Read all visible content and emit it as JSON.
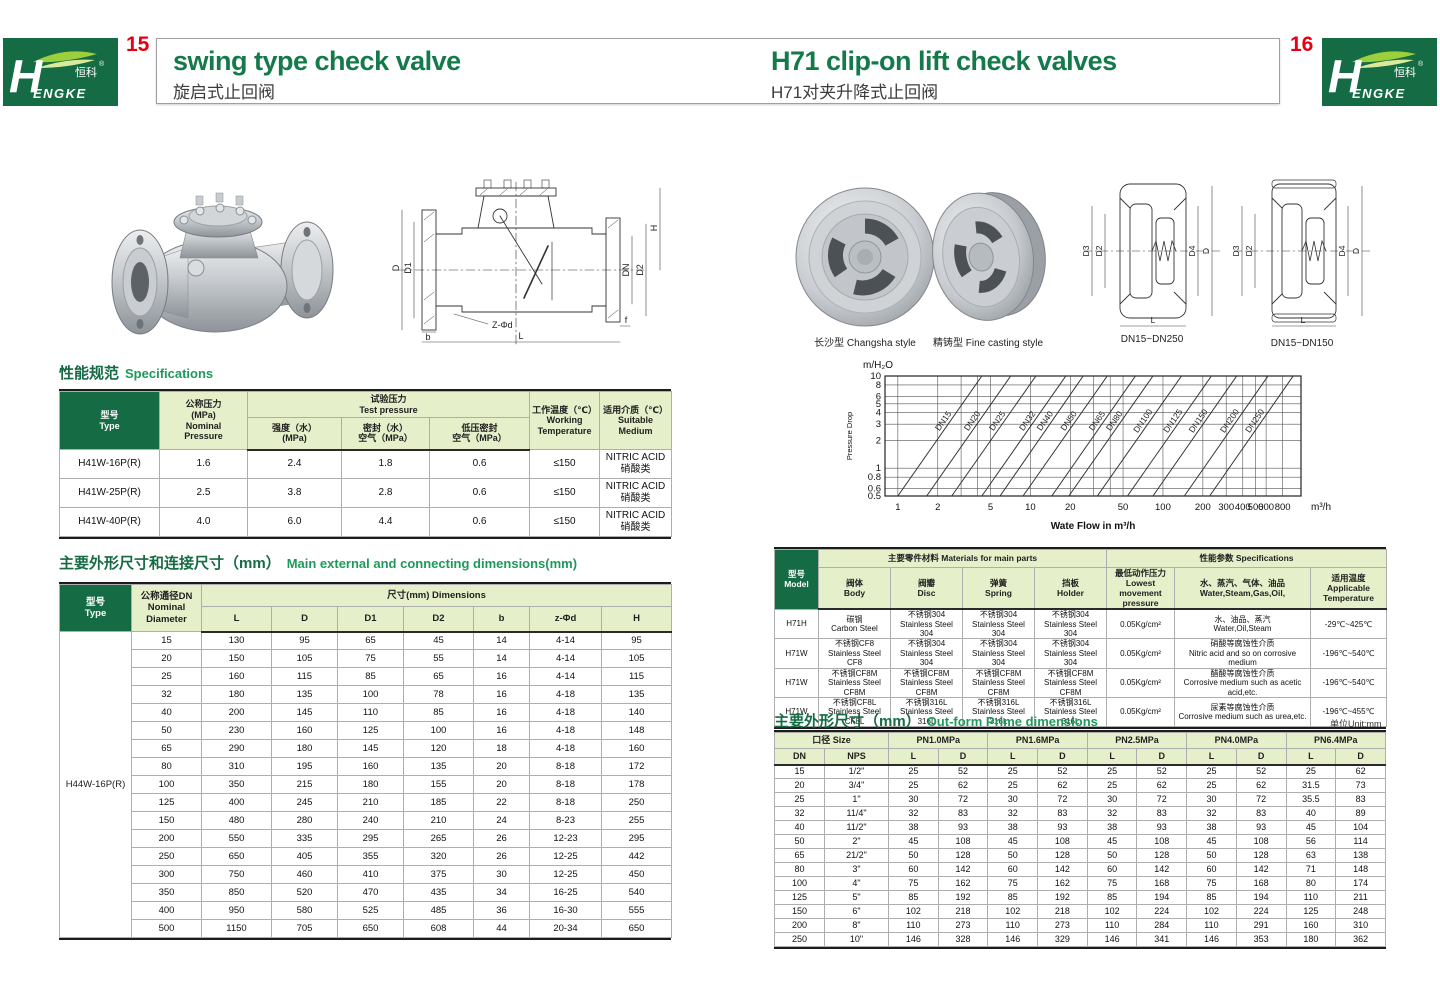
{
  "page": {
    "left_number": "15",
    "right_number": "16"
  },
  "logo": {
    "h": "H",
    "rest": "ENGKE",
    "zh": "恒科",
    "reg": "®"
  },
  "left": {
    "title_en": "swing type check valve",
    "title_zh": "旋启式止回阀",
    "spec_section": {
      "zh": "性能规范",
      "en": "Specifications"
    },
    "spec": {
      "h_type": "型号\nType",
      "h_nominal": "公称压力\n(MPa)\nNominal\nPressure",
      "h_test": "试验压力\nTest pressure",
      "h_strength": "强度（水）\n(MPa)",
      "h_seal": "密封（水）\n空气（MPa）",
      "h_lowseal": "低压密封\n空气（MPa）",
      "h_working": "工作温度（℃）\nWorking\nTemperature",
      "h_medium": "适用介质（℃）\nSuitable\nMedium",
      "rows": [
        [
          "H41W-16P(R)",
          "1.6",
          "2.4",
          "1.8",
          "0.6",
          "≤150",
          "NITRIC ACID\n硝酸类"
        ],
        [
          "H41W-25P(R)",
          "2.5",
          "3.8",
          "2.8",
          "0.6",
          "≤150",
          "NITRIC ACID\n硝酸类"
        ],
        [
          "H41W-40P(R)",
          "4.0",
          "6.0",
          "4.4",
          "0.6",
          "≤150",
          "NITRIC ACID\n硝酸类"
        ]
      ]
    },
    "dims_section": {
      "zh": "主要外形尺寸和连接尺寸（mm）",
      "en": "Main external and connecting dimensions(mm)"
    },
    "dims": {
      "h_type": "型号\nType",
      "h_dn": "公称通径DN\nNominal\nDiameter",
      "h_dims": "尺寸(mm) Dimensions",
      "cols": [
        "L",
        "D",
        "D1",
        "D2",
        "b",
        "z-Φd",
        "H"
      ],
      "type_label": "H44W-16P(R)",
      "rows": [
        [
          "15",
          "130",
          "95",
          "65",
          "45",
          "14",
          "4-14",
          "95"
        ],
        [
          "20",
          "150",
          "105",
          "75",
          "55",
          "14",
          "4-14",
          "105"
        ],
        [
          "25",
          "160",
          "115",
          "85",
          "65",
          "16",
          "4-14",
          "115"
        ],
        [
          "32",
          "180",
          "135",
          "100",
          "78",
          "16",
          "4-18",
          "135"
        ],
        [
          "40",
          "200",
          "145",
          "110",
          "85",
          "16",
          "4-18",
          "140"
        ],
        [
          "50",
          "230",
          "160",
          "125",
          "100",
          "16",
          "4-18",
          "148"
        ],
        [
          "65",
          "290",
          "180",
          "145",
          "120",
          "18",
          "4-18",
          "160"
        ],
        [
          "80",
          "310",
          "195",
          "160",
          "135",
          "20",
          "8-18",
          "172"
        ],
        [
          "100",
          "350",
          "215",
          "180",
          "155",
          "20",
          "8-18",
          "178"
        ],
        [
          "125",
          "400",
          "245",
          "210",
          "185",
          "22",
          "8-18",
          "250"
        ],
        [
          "150",
          "480",
          "280",
          "240",
          "210",
          "24",
          "8-23",
          "255"
        ],
        [
          "200",
          "550",
          "335",
          "295",
          "265",
          "26",
          "12-23",
          "295"
        ],
        [
          "250",
          "650",
          "405",
          "355",
          "320",
          "26",
          "12-25",
          "442"
        ],
        [
          "300",
          "750",
          "460",
          "410",
          "375",
          "30",
          "12-25",
          "450"
        ],
        [
          "350",
          "850",
          "520",
          "470",
          "435",
          "34",
          "16-25",
          "540"
        ],
        [
          "400",
          "950",
          "580",
          "525",
          "485",
          "36",
          "16-30",
          "555"
        ],
        [
          "500",
          "1150",
          "705",
          "650",
          "608",
          "44",
          "20-34",
          "650"
        ]
      ]
    },
    "drawing_labels": [
      "D",
      "D1",
      "DN",
      "D2",
      "H",
      "L",
      "b",
      "f",
      "Z-Φd"
    ]
  },
  "right": {
    "title_en": "H71 clip-on lift check valves",
    "title_zh": "H71对夹升降式止回阀",
    "captions": [
      "长沙型 Changsha style",
      "精铸型 Fine casting style",
      "DN15~DN250",
      "DN15~DN150"
    ],
    "drawing_labels": [
      "D3",
      "D2",
      "D4",
      "D",
      "L"
    ],
    "materials": {
      "h_model": "型号\nModel",
      "h_main": "主要零件材料 Materials for main parts",
      "h_body": "阀体\nBody",
      "h_disc": "阀瓣\nDisc",
      "h_spring": "弹簧\nSpring",
      "h_holder": "挡板\nHolder",
      "h_spec": "性能参数 Specifications",
      "h_pressure": "最低动作压力\nLowest movement\npressure",
      "h_media": "水、蒸汽、气体、油品\nWater,Steam,Gas,Oil,",
      "h_temp": "适用温度\nApplicable\nTemperature",
      "rows": [
        [
          "H71H",
          "碳钢\nCarbon Steel",
          "不锈钢304\nStainless Steel 304",
          "不锈钢304\nStainless Steel 304",
          "不锈钢304\nStainless Steel 304",
          "0.05Kg/cm²",
          "水、油品、蒸汽\nWater,Oil,Steam",
          "-29℃~425℃"
        ],
        [
          "H71W",
          "不锈钢CF8\nStainless Steel CF8",
          "不锈钢304\nStainless Steel 304",
          "不锈钢304\nStainless Steel 304",
          "不锈钢304\nStainless Steel 304",
          "0.05Kg/cm²",
          "硝酸等腐蚀性介质\nNitric acid and so on corrosive medium",
          "-196℃~540℃"
        ],
        [
          "H71W",
          "不锈钢CF8M\nStainless Steel CF8M",
          "不锈钢CF8M\nStainless Steel CF8M",
          "不锈钢CF8M\nStainless Steel CF8M",
          "不锈钢CF8M\nStainless Steel CF8M",
          "0.05Kg/cm²",
          "醋酸等腐蚀性介质\nCorrosive medium such as acetic acid,etc.",
          "-196℃~540℃"
        ],
        [
          "H71W",
          "不锈钢CF8L\nStainless Steel CF8L",
          "不锈钢316L\nStainless Steel 316L",
          "不锈钢316L\nStainless Steel 316L",
          "不锈钢316L\nStainless Steel 316L",
          "0.05Kg/cm²",
          "尿素等腐蚀性介质\nCorrosive medium such as urea,etc.",
          "-196℃~455℃"
        ]
      ]
    },
    "dims_section": {
      "zh": "主要外形尺寸（mm）",
      "en": "Out-form Prime dimensions",
      "unit": "单位Unit:mm"
    },
    "dims": {
      "h_size": "口径 Size",
      "h_dn": "DN",
      "h_nps": "NPS",
      "h_l": "L",
      "h_d": "D",
      "pn": [
        "PN1.0MPa",
        "PN1.6MPa",
        "PN2.5MPa",
        "PN4.0MPa",
        "PN6.4MPa"
      ],
      "rows": [
        [
          "15",
          "1/2\"",
          "25",
          "52",
          "25",
          "52",
          "25",
          "52",
          "25",
          "52",
          "25",
          "62"
        ],
        [
          "20",
          "3/4\"",
          "25",
          "62",
          "25",
          "62",
          "25",
          "62",
          "25",
          "62",
          "31.5",
          "73"
        ],
        [
          "25",
          "1\"",
          "30",
          "72",
          "30",
          "72",
          "30",
          "72",
          "30",
          "72",
          "35.5",
          "83"
        ],
        [
          "32",
          "11/4\"",
          "32",
          "83",
          "32",
          "83",
          "32",
          "83",
          "32",
          "83",
          "40",
          "89"
        ],
        [
          "40",
          "11/2\"",
          "38",
          "93",
          "38",
          "93",
          "38",
          "93",
          "38",
          "93",
          "45",
          "104"
        ],
        [
          "50",
          "2\"",
          "45",
          "108",
          "45",
          "108",
          "45",
          "108",
          "45",
          "108",
          "56",
          "114"
        ],
        [
          "65",
          "21/2\"",
          "50",
          "128",
          "50",
          "128",
          "50",
          "128",
          "50",
          "128",
          "63",
          "138"
        ],
        [
          "80",
          "3\"",
          "60",
          "142",
          "60",
          "142",
          "60",
          "142",
          "60",
          "142",
          "71",
          "148"
        ],
        [
          "100",
          "4\"",
          "75",
          "162",
          "75",
          "162",
          "75",
          "168",
          "75",
          "168",
          "80",
          "174"
        ],
        [
          "125",
          "5\"",
          "85",
          "192",
          "85",
          "192",
          "85",
          "194",
          "85",
          "194",
          "110",
          "211"
        ],
        [
          "150",
          "6\"",
          "102",
          "218",
          "102",
          "218",
          "102",
          "224",
          "102",
          "224",
          "125",
          "248"
        ],
        [
          "200",
          "8\"",
          "110",
          "273",
          "110",
          "273",
          "110",
          "284",
          "110",
          "291",
          "160",
          "310"
        ],
        [
          "250",
          "10\"",
          "146",
          "328",
          "146",
          "329",
          "146",
          "341",
          "146",
          "353",
          "180",
          "362"
        ]
      ]
    }
  },
  "chart_data": {
    "type": "line",
    "title": "",
    "y_unit_label": "m/H₂O",
    "ylabel": "Pressure Drop",
    "xlabel": "Wate Flow in m³/h",
    "x_unit_label": "m³/h",
    "x_scale": "log",
    "y_scale": "log",
    "xlim": [
      0.8,
      1100
    ],
    "ylim": [
      0.5,
      10
    ],
    "x_gridlines": [
      1,
      2,
      3,
      4,
      5,
      10,
      20,
      30,
      40,
      50,
      100,
      200,
      300,
      400,
      500,
      600,
      800
    ],
    "x_tick_labels": [
      1,
      2,
      5,
      10,
      20,
      50,
      100,
      200,
      300,
      400,
      500,
      600,
      800
    ],
    "y_ticks": [
      0.5,
      0.6,
      0.8,
      1,
      2,
      3,
      4,
      5,
      6,
      8,
      10
    ],
    "grid": true,
    "legend": "labels-on-lines",
    "series": [
      {
        "name": "DN15",
        "flow_at_0_5m": 1.0,
        "flow_at_10m": 4.3
      },
      {
        "name": "DN20",
        "flow_at_0_5m": 1.65,
        "flow_at_10m": 7.1
      },
      {
        "name": "DN25",
        "flow_at_0_5m": 2.55,
        "flow_at_10m": 11
      },
      {
        "name": "DN32",
        "flow_at_0_5m": 4.3,
        "flow_at_10m": 18.5
      },
      {
        "name": "DN40",
        "flow_at_0_5m": 5.9,
        "flow_at_10m": 25
      },
      {
        "name": "DN50",
        "flow_at_0_5m": 8.8,
        "flow_at_10m": 38
      },
      {
        "name": "DN65",
        "flow_at_0_5m": 14.5,
        "flow_at_10m": 62
      },
      {
        "name": "DN80",
        "flow_at_0_5m": 19.5,
        "flow_at_10m": 84
      },
      {
        "name": "DN100",
        "flow_at_0_5m": 32,
        "flow_at_10m": 138
      },
      {
        "name": "DN125",
        "flow_at_0_5m": 54,
        "flow_at_10m": 232
      },
      {
        "name": "DN150",
        "flow_at_0_5m": 84,
        "flow_at_10m": 360
      },
      {
        "name": "DN200",
        "flow_at_0_5m": 145,
        "flow_at_10m": 620
      },
      {
        "name": "DN250",
        "flow_at_0_5m": 225,
        "flow_at_10m": 960
      }
    ]
  }
}
